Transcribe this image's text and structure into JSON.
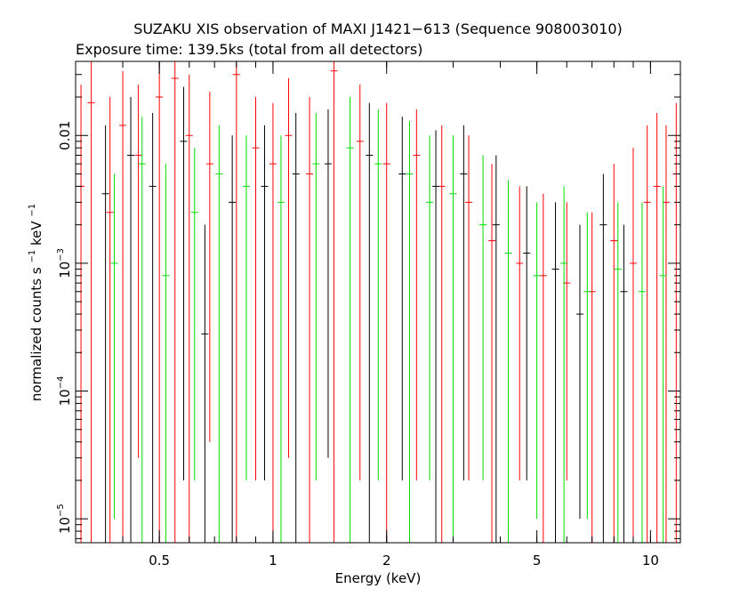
{
  "chart_data": {
    "type": "scatter",
    "title": "SUZAKU XIS observation of MAXI J1421−613 (Sequence 908003010)",
    "subtitle": "Exposure time: 139.5ks (total from all detectors)",
    "xlabel": "Energy (keV)",
    "ylabel_main": "normalized counts s",
    "ylabel_exp1": "−1",
    "ylabel_unit": " keV",
    "ylabel_exp2": "−1",
    "x_scale": "log",
    "y_scale": "log",
    "xlim": [
      0.3,
      12
    ],
    "ylim": [
      6.5e-06,
      0.038
    ],
    "x_ticks": [
      {
        "value": 0.5,
        "label": "0.5"
      },
      {
        "value": 1,
        "label": "1"
      },
      {
        "value": 2,
        "label": "2"
      },
      {
        "value": 5,
        "label": "5"
      },
      {
        "value": 10,
        "label": "10"
      }
    ],
    "y_ticks": [
      {
        "value": 0.01,
        "base": "0.01",
        "exp": ""
      },
      {
        "value": 0.001,
        "base": "10",
        "exp": "−3"
      },
      {
        "value": 0.0001,
        "base": "10",
        "exp": "−4"
      },
      {
        "value": 1e-05,
        "base": "10",
        "exp": "−5"
      }
    ],
    "series": [
      {
        "color": "#ff0000",
        "points": [
          {
            "x": 0.31,
            "y": 0.004,
            "ylo": 6.5e-06,
            "yhi": 0.025
          },
          {
            "x": 0.33,
            "y": 0.018,
            "ylo": 6.5e-06,
            "yhi": 0.038
          },
          {
            "x": 0.37,
            "y": 0.0025,
            "ylo": 6.5e-06,
            "yhi": 0.02
          },
          {
            "x": 0.4,
            "y": 0.012,
            "ylo": 6.5e-06,
            "yhi": 0.032
          },
          {
            "x": 0.44,
            "y": 0.007,
            "ylo": 3e-05,
            "yhi": 0.025
          },
          {
            "x": 0.5,
            "y": 0.02,
            "ylo": 6.5e-06,
            "yhi": 0.038
          },
          {
            "x": 0.55,
            "y": 0.028,
            "ylo": 6.5e-06,
            "yhi": 0.038
          },
          {
            "x": 0.6,
            "y": 0.01,
            "ylo": 6.5e-06,
            "yhi": 0.03
          },
          {
            "x": 0.68,
            "y": 0.006,
            "ylo": 4e-05,
            "yhi": 0.022
          },
          {
            "x": 0.8,
            "y": 0.03,
            "ylo": 6.5e-06,
            "yhi": 0.038
          },
          {
            "x": 0.9,
            "y": 0.008,
            "ylo": 2e-05,
            "yhi": 0.02
          },
          {
            "x": 1.0,
            "y": 0.006,
            "ylo": 6.5e-06,
            "yhi": 0.018
          },
          {
            "x": 1.1,
            "y": 0.01,
            "ylo": 3e-05,
            "yhi": 0.028
          },
          {
            "x": 1.25,
            "y": 0.005,
            "ylo": 6.5e-06,
            "yhi": 0.02
          },
          {
            "x": 1.45,
            "y": 0.032,
            "ylo": 6.5e-06,
            "yhi": 0.038
          },
          {
            "x": 1.7,
            "y": 0.009,
            "ylo": 2e-05,
            "yhi": 0.025
          },
          {
            "x": 2.0,
            "y": 0.006,
            "ylo": 6.5e-06,
            "yhi": 0.018
          },
          {
            "x": 2.4,
            "y": 0.007,
            "ylo": 2e-05,
            "yhi": 0.016
          },
          {
            "x": 2.8,
            "y": 0.004,
            "ylo": 6.5e-06,
            "yhi": 0.012
          },
          {
            "x": 3.3,
            "y": 0.003,
            "ylo": 2e-05,
            "yhi": 0.01
          },
          {
            "x": 3.8,
            "y": 0.0015,
            "ylo": 6.5e-06,
            "yhi": 0.006
          },
          {
            "x": 4.5,
            "y": 0.001,
            "ylo": 2e-05,
            "yhi": 0.004
          },
          {
            "x": 5.2,
            "y": 0.0008,
            "ylo": 6.5e-06,
            "yhi": 0.0035
          },
          {
            "x": 6.0,
            "y": 0.0007,
            "ylo": 2e-05,
            "yhi": 0.003
          },
          {
            "x": 7.0,
            "y": 0.0006,
            "ylo": 6.5e-06,
            "yhi": 0.0025
          },
          {
            "x": 8.0,
            "y": 0.0015,
            "ylo": 6.5e-06,
            "yhi": 0.006
          },
          {
            "x": 9.0,
            "y": 0.001,
            "ylo": 6.5e-06,
            "yhi": 0.008
          },
          {
            "x": 9.8,
            "y": 0.003,
            "ylo": 6.5e-06,
            "yhi": 0.012
          },
          {
            "x": 10.4,
            "y": 0.004,
            "ylo": 6.5e-06,
            "yhi": 0.015
          },
          {
            "x": 11.0,
            "y": 0.003,
            "ylo": 6.5e-06,
            "yhi": 0.012
          },
          {
            "x": 11.7,
            "y": 0.005,
            "ylo": 6.5e-06,
            "yhi": 0.018
          }
        ]
      },
      {
        "color": "#000000",
        "points": [
          {
            "x": 0.36,
            "y": 0.0035,
            "ylo": 6.5e-06,
            "yhi": 0.012
          },
          {
            "x": 0.42,
            "y": 0.007,
            "ylo": 6.5e-06,
            "yhi": 0.02
          },
          {
            "x": 0.48,
            "y": 0.004,
            "ylo": 6.5e-06,
            "yhi": 0.015
          },
          {
            "x": 0.58,
            "y": 0.009,
            "ylo": 2e-05,
            "yhi": 0.024
          },
          {
            "x": 0.66,
            "y": 0.00028,
            "ylo": 6.5e-06,
            "yhi": 0.002
          },
          {
            "x": 0.78,
            "y": 0.003,
            "ylo": 6.5e-06,
            "yhi": 0.01
          },
          {
            "x": 0.95,
            "y": 0.004,
            "ylo": 2e-05,
            "yhi": 0.012
          },
          {
            "x": 1.15,
            "y": 0.005,
            "ylo": 6.5e-06,
            "yhi": 0.015
          },
          {
            "x": 1.4,
            "y": 0.006,
            "ylo": 3e-05,
            "yhi": 0.016
          },
          {
            "x": 1.8,
            "y": 0.007,
            "ylo": 6.5e-06,
            "yhi": 0.018
          },
          {
            "x": 2.2,
            "y": 0.005,
            "ylo": 2e-05,
            "yhi": 0.014
          },
          {
            "x": 2.7,
            "y": 0.004,
            "ylo": 6.5e-06,
            "yhi": 0.011
          },
          {
            "x": 3.2,
            "y": 0.005,
            "ylo": 2e-05,
            "yhi": 0.012
          },
          {
            "x": 3.9,
            "y": 0.002,
            "ylo": 6.5e-06,
            "yhi": 0.007
          },
          {
            "x": 4.7,
            "y": 0.0012,
            "ylo": 2e-05,
            "yhi": 0.004
          },
          {
            "x": 5.6,
            "y": 0.0009,
            "ylo": 6.5e-06,
            "yhi": 0.003
          },
          {
            "x": 6.5,
            "y": 0.0004,
            "ylo": 1e-05,
            "yhi": 0.002
          },
          {
            "x": 7.5,
            "y": 0.002,
            "ylo": 6.5e-06,
            "yhi": 0.005
          },
          {
            "x": 8.5,
            "y": 0.0006,
            "ylo": 6.5e-06,
            "yhi": 0.002
          }
        ]
      },
      {
        "color": "#00dd00",
        "points": [
          {
            "x": 0.38,
            "y": 0.001,
            "ylo": 1e-05,
            "yhi": 0.005
          },
          {
            "x": 0.45,
            "y": 0.006,
            "ylo": 6.5e-06,
            "yhi": 0.014
          },
          {
            "x": 0.52,
            "y": 0.0008,
            "ylo": 6.5e-06,
            "yhi": 0.006
          },
          {
            "x": 0.62,
            "y": 0.0025,
            "ylo": 2e-05,
            "yhi": 0.008
          },
          {
            "x": 0.72,
            "y": 0.005,
            "ylo": 6.5e-06,
            "yhi": 0.012
          },
          {
            "x": 0.85,
            "y": 0.004,
            "ylo": 2e-05,
            "yhi": 0.01
          },
          {
            "x": 1.05,
            "y": 0.003,
            "ylo": 6.5e-06,
            "yhi": 0.01
          },
          {
            "x": 1.3,
            "y": 0.006,
            "ylo": 2e-05,
            "yhi": 0.015
          },
          {
            "x": 1.6,
            "y": 0.008,
            "ylo": 6.5e-06,
            "yhi": 0.02
          },
          {
            "x": 1.9,
            "y": 0.006,
            "ylo": 2e-05,
            "yhi": 0.016
          },
          {
            "x": 2.3,
            "y": 0.005,
            "ylo": 6.5e-06,
            "yhi": 0.013
          },
          {
            "x": 2.6,
            "y": 0.003,
            "ylo": 2e-05,
            "yhi": 0.01
          },
          {
            "x": 3.0,
            "y": 0.0035,
            "ylo": 6.5e-06,
            "yhi": 0.01
          },
          {
            "x": 3.6,
            "y": 0.002,
            "ylo": 2e-05,
            "yhi": 0.007
          },
          {
            "x": 4.2,
            "y": 0.0012,
            "ylo": 6.5e-06,
            "yhi": 0.0045
          },
          {
            "x": 5.0,
            "y": 0.0008,
            "ylo": 1e-05,
            "yhi": 0.003
          },
          {
            "x": 5.9,
            "y": 0.001,
            "ylo": 6.5e-06,
            "yhi": 0.004
          },
          {
            "x": 6.8,
            "y": 0.0006,
            "ylo": 1e-05,
            "yhi": 0.0025
          },
          {
            "x": 8.2,
            "y": 0.0009,
            "ylo": 6.5e-06,
            "yhi": 0.003
          },
          {
            "x": 9.5,
            "y": 0.0006,
            "ylo": 6.5e-06,
            "yhi": 0.003
          },
          {
            "x": 10.8,
            "y": 0.0008,
            "ylo": 6.5e-06,
            "yhi": 0.004
          }
        ]
      }
    ]
  }
}
